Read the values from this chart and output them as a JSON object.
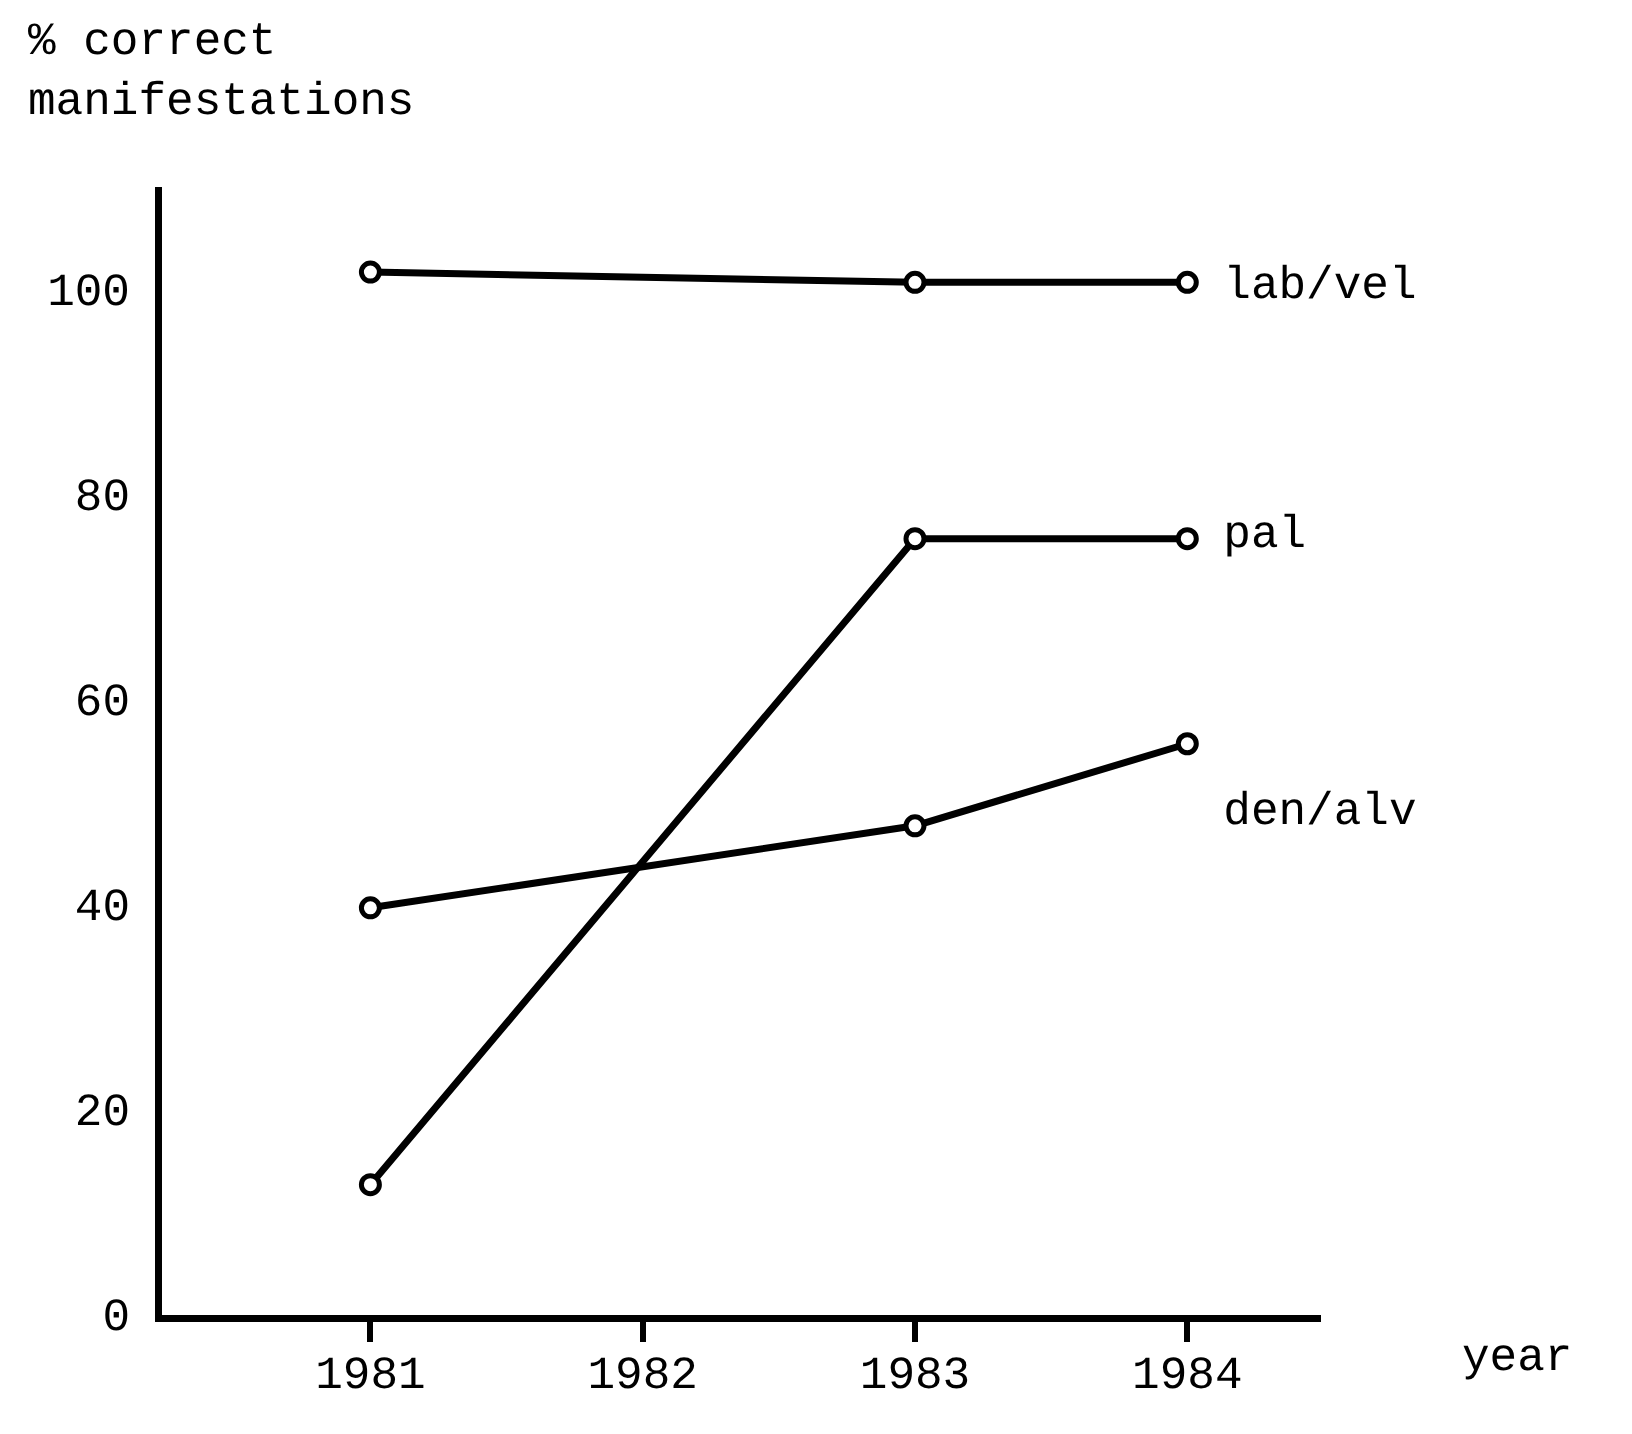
{
  "chart_data": {
    "type": "line",
    "ylabel": "% correct manifestations",
    "xlabel": "year",
    "xlim": [
      1980.22,
      1984.48
    ],
    "xticks": [
      1981,
      1982,
      1983,
      1984
    ],
    "ylim": [
      0,
      110
    ],
    "yticks": [
      0,
      20,
      40,
      60,
      80,
      100
    ],
    "grid": false,
    "legend": false,
    "marker": "circle",
    "line_style": "solid",
    "series": [
      {
        "name": "lab/vel",
        "color": "#000000",
        "x": [
          1981,
          1983,
          1984
        ],
        "values": [
          102,
          101,
          101
        ]
      },
      {
        "name": "pal",
        "color": "#000000",
        "x": [
          1981,
          1983,
          1984
        ],
        "values": [
          13,
          76,
          76
        ]
      },
      {
        "name": "den/alv",
        "color": "#000000",
        "x": [
          1981,
          1983,
          1984
        ],
        "values": [
          40,
          48,
          56
        ]
      }
    ]
  }
}
